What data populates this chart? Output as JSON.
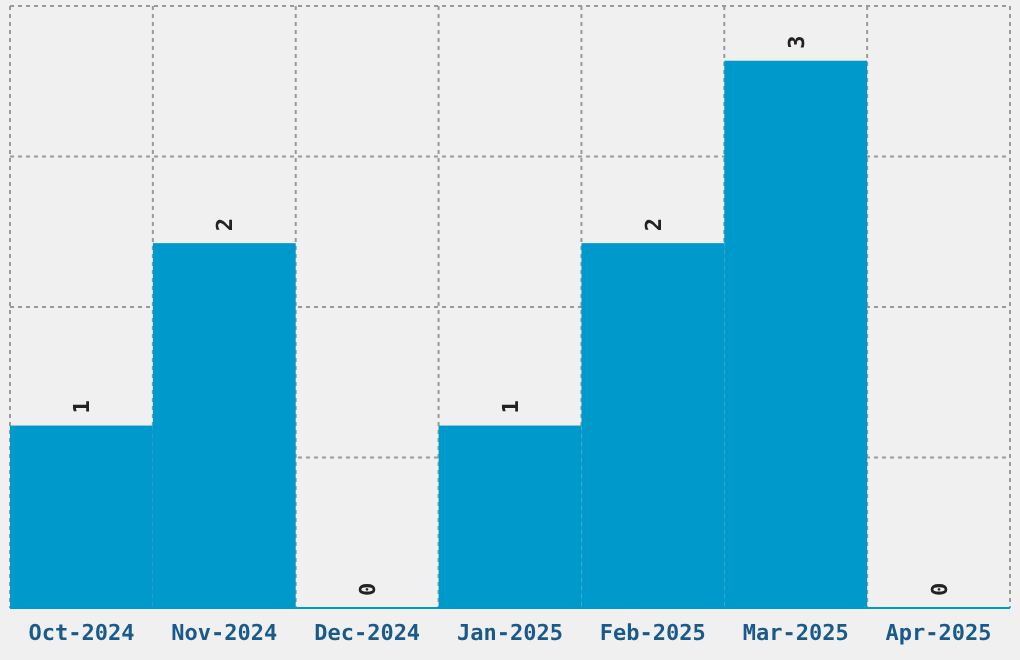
{
  "chart_data": {
    "type": "bar",
    "categories": [
      "Oct-2024",
      "Nov-2024",
      "Dec-2024",
      "Jan-2025",
      "Feb-2025",
      "Mar-2025",
      "Apr-2025"
    ],
    "values": [
      1,
      2,
      0,
      1,
      2,
      3,
      0
    ],
    "color": "#0099cc",
    "data_labels": true,
    "grid": true,
    "tick_labels": "x",
    "ylim": [
      0,
      3.3
    ],
    "yticks": [
      {
        "value": 0,
        "label": null
      },
      {
        "value": 0.825,
        "label": null
      },
      {
        "value": 1.65,
        "label": null
      },
      {
        "value": 2.475,
        "label": null
      },
      {
        "value": 3.3,
        "label": null
      }
    ]
  }
}
